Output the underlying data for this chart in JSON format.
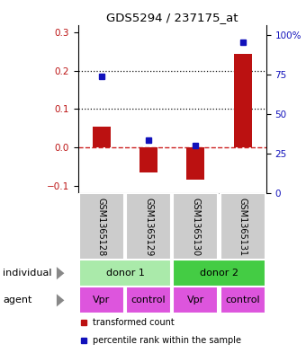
{
  "title": "GDS5294 / 237175_at",
  "samples": [
    "GSM1365128",
    "GSM1365129",
    "GSM1365130",
    "GSM1365131"
  ],
  "bar_values": [
    0.055,
    -0.065,
    -0.085,
    0.245
  ],
  "dot_values": [
    0.185,
    0.018,
    0.005,
    0.275
  ],
  "ylim_left": [
    -0.12,
    0.32
  ],
  "ylim_right": [
    0,
    106.67
  ],
  "yticks_left": [
    -0.1,
    0.0,
    0.1,
    0.2,
    0.3
  ],
  "yticks_right": [
    0,
    25,
    50,
    75,
    100
  ],
  "ytick_labels_right": [
    "0",
    "25",
    "50",
    "75",
    "100%"
  ],
  "bar_color": "#bb1111",
  "dot_color": "#1111bb",
  "hline_color": "#cc2222",
  "dotted_line_color": "#111111",
  "sample_bg": "#cccccc",
  "individual_colors": [
    "#aaeaaa",
    "#44cc44"
  ],
  "agents": [
    "Vpr",
    "control",
    "Vpr",
    "control"
  ],
  "agent_color_fill": "#dd55dd",
  "legend_bar_label": "transformed count",
  "legend_dot_label": "percentile rank within the sample",
  "xlabel_individual": "individual",
  "xlabel_agent": "agent",
  "arrow_color": "#888888"
}
